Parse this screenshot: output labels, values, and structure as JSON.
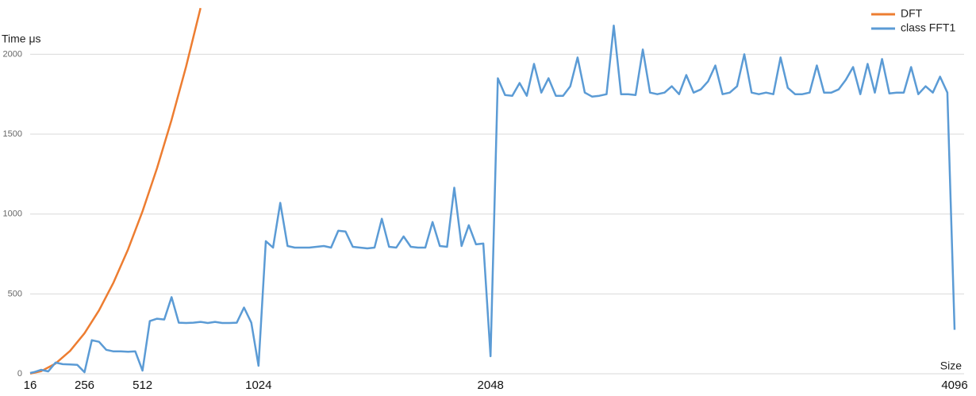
{
  "chart_data": {
    "type": "line",
    "y_label": "Time μs",
    "x_label": "Size",
    "xlim": [
      16,
      4096
    ],
    "xticks": [
      16,
      256,
      512,
      1024,
      2048,
      4096
    ],
    "ylim": [
      0,
      2300
    ],
    "yticks": [
      0,
      500,
      1000,
      1500,
      2000
    ],
    "grid": true,
    "legend": "top-right",
    "series": [
      {
        "name": "DFT",
        "color": "#ed7d31",
        "x": [
          16,
          64,
          128,
          192,
          256,
          320,
          384,
          448,
          512,
          576,
          640,
          704,
          768
        ],
        "values": [
          1,
          16,
          64,
          143,
          254,
          397,
          572,
          779,
          1017,
          1287,
          1589,
          1923,
          2289
        ]
      },
      {
        "name": "class FFT1",
        "color": "#5b9bd5",
        "x": [
          16,
          32,
          64,
          96,
          128,
          160,
          192,
          224,
          256,
          288,
          320,
          352,
          384,
          416,
          448,
          480,
          512,
          544,
          576,
          608,
          640,
          672,
          704,
          736,
          768,
          800,
          832,
          864,
          896,
          928,
          960,
          992,
          1024,
          1056,
          1088,
          1120,
          1152,
          1184,
          1216,
          1248,
          1280,
          1312,
          1344,
          1376,
          1408,
          1440,
          1472,
          1504,
          1536,
          1568,
          1600,
          1632,
          1664,
          1696,
          1728,
          1760,
          1792,
          1824,
          1856,
          1888,
          1920,
          1952,
          1984,
          2016,
          2048,
          2080,
          2112,
          2144,
          2176,
          2208,
          2240,
          2272,
          2304,
          2336,
          2368,
          2400,
          2432,
          2464,
          2496,
          2528,
          2560,
          2592,
          2624,
          2656,
          2688,
          2720,
          2752,
          2784,
          2816,
          2848,
          2880,
          2912,
          2944,
          2976,
          3008,
          3040,
          3072,
          3104,
          3136,
          3168,
          3200,
          3232,
          3264,
          3296,
          3328,
          3360,
          3392,
          3424,
          3456,
          3488,
          3520,
          3552,
          3584,
          3616,
          3648,
          3680,
          3712,
          3744,
          3776,
          3808,
          3840,
          3872,
          3904,
          3936,
          3968,
          4000,
          4032,
          4064,
          4096
        ],
        "values": [
          5,
          10,
          25,
          15,
          70,
          60,
          58,
          56,
          10,
          210,
          200,
          150,
          140,
          140,
          138,
          140,
          20,
          330,
          345,
          340,
          480,
          320,
          318,
          320,
          325,
          318,
          325,
          318,
          318,
          320,
          415,
          320,
          50,
          830,
          790,
          1070,
          800,
          790,
          790,
          790,
          795,
          800,
          790,
          895,
          890,
          795,
          790,
          785,
          790,
          970,
          795,
          790,
          860,
          795,
          790,
          790,
          950,
          800,
          795,
          1165,
          800,
          930,
          810,
          815,
          110,
          1850,
          1745,
          1740,
          1820,
          1740,
          1940,
          1760,
          1850,
          1740,
          1740,
          1800,
          1980,
          1760,
          1735,
          1740,
          1750,
          2180,
          1750,
          1750,
          1745,
          2030,
          1760,
          1750,
          1760,
          1800,
          1750,
          1870,
          1760,
          1780,
          1830,
          1930,
          1750,
          1760,
          1800,
          2000,
          1760,
          1750,
          1760,
          1750,
          1980,
          1790,
          1750,
          1750,
          1760,
          1930,
          1760,
          1760,
          1780,
          1840,
          1920,
          1750,
          1940,
          1760,
          1970,
          1755,
          1760,
          1760,
          1920,
          1750,
          1800,
          1760,
          1860,
          1760,
          275
        ]
      }
    ]
  }
}
